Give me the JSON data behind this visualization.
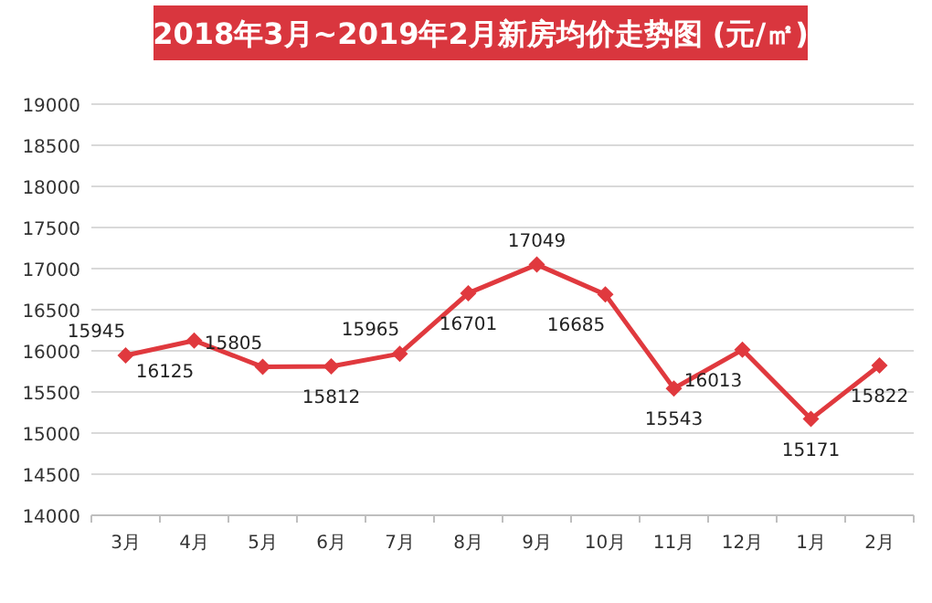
{
  "chart_data": {
    "type": "line",
    "title": "2018年3月~2019年2月新房均价走势图 (元/㎡)",
    "categories": [
      "3月",
      "4月",
      "5月",
      "6月",
      "7月",
      "8月",
      "9月",
      "10月",
      "11月",
      "12月",
      "1月",
      "2月"
    ],
    "series": [
      {
        "color": "#e0393e",
        "values": [
          15945,
          16125,
          15805,
          15812,
          15965,
          16701,
          17049,
          16685,
          15543,
          16013,
          15171,
          15822
        ]
      }
    ],
    "ylim": [
      14000,
      19000
    ],
    "yticks": [
      14000,
      14500,
      15000,
      15500,
      16000,
      16500,
      17000,
      17500,
      18000,
      18500,
      19000
    ],
    "grid": "y",
    "marker": "diamond",
    "line_style": "solid",
    "data_labels": true
  }
}
